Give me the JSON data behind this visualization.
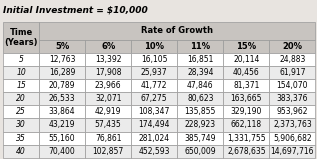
{
  "title": "Initial Investment = $10,000",
  "rate_headers": [
    "5%",
    "6%",
    "10%",
    "11%",
    "15%",
    "20%"
  ],
  "rows": [
    [
      5,
      "12,763",
      "13,392",
      "16,105",
      "16,851",
      "20,114",
      "24,883"
    ],
    [
      10,
      "16,289",
      "17,908",
      "25,937",
      "28,394",
      "40,456",
      "61,917"
    ],
    [
      15,
      "20,789",
      "23,966",
      "41,772",
      "47,846",
      "81,371",
      "154,070"
    ],
    [
      20,
      "26,533",
      "32,071",
      "67,275",
      "80,623",
      "163,665",
      "383,376"
    ],
    [
      25,
      "33,864",
      "42,919",
      "108,347",
      "135,855",
      "329,190",
      "953,962"
    ],
    [
      30,
      "43,219",
      "57,435",
      "174,494",
      "228,923",
      "662,118",
      "2,373,763"
    ],
    [
      35,
      "55,160",
      "76,861",
      "281,024",
      "385,749",
      "1,331,755",
      "5,906,682"
    ],
    [
      40,
      "70,400",
      "102,857",
      "452,593",
      "650,009",
      "2,678,635",
      "14,697,716"
    ]
  ],
  "header_bg": "#c8c4c0",
  "row_bg_even": "#ffffff",
  "row_bg_odd": "#ebebeb",
  "border_color": "#999999",
  "text_color": "#000000",
  "title_fontsize": 6.5,
  "header_fontsize": 6.0,
  "cell_fontsize": 5.5,
  "fig_bg": "#e8e4e0"
}
